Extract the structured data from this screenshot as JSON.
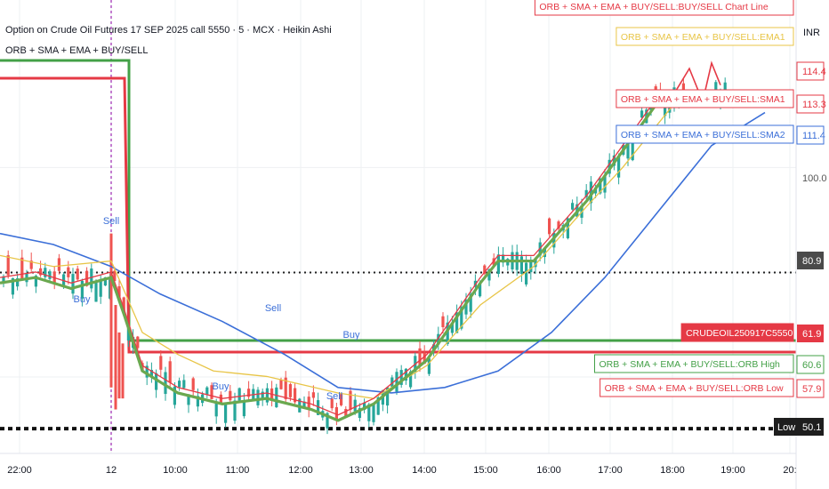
{
  "header": {
    "title": "Option on Crude Oil Futures 17 SEP 2025 call 5550 · 5 · MCX · Heikin Ashi",
    "indicator": "ORB + SMA + EMA + BUY/SELL",
    "currency": "INR"
  },
  "legend_tags": [
    {
      "text": "ORB + SMA + EMA + BUY/SELL:BUY/SELL Chart Line",
      "color": "#e53945"
    },
    {
      "text": "ORB + SMA + EMA + BUY/SELL:EMA1",
      "color": "#e8c547"
    },
    {
      "text": "ORB + SMA + EMA + BUY/SELL:SMA1",
      "color": "#e53945"
    },
    {
      "text": "ORB + SMA + EMA + BUY/SELL:SMA2",
      "color": "#3b6fd8"
    },
    {
      "text": "CRUDEOIL250917C5550",
      "color": "#e53945"
    },
    {
      "text": "ORB + SMA + EMA + BUY/SELL:ORB High",
      "color": "#43a047"
    },
    {
      "text": "ORB + SMA + EMA + BUY/SELL:ORB Low",
      "color": "#e53945"
    }
  ],
  "price_tags": [
    {
      "value": "114.4",
      "color": "#e53945",
      "filled": false
    },
    {
      "value": "113.3",
      "color": "#e53945",
      "filled": false
    },
    {
      "value": "111.4",
      "color": "#3b6fd8",
      "filled": false
    },
    {
      "value": "100.0",
      "color": "#555555",
      "filled": false
    },
    {
      "value": "80.9",
      "color": "#4a4a4a",
      "filled": true
    },
    {
      "value": "61.9",
      "color": "#e53945",
      "filled": true
    },
    {
      "value": "60.6",
      "color": "#43a047",
      "filled": false
    },
    {
      "value": "57.9",
      "color": "#e53945",
      "filled": false
    },
    {
      "value": "50.1",
      "color": "#1e1e1e",
      "filled": true
    }
  ],
  "low_badge": "Low",
  "signals": [
    {
      "text": "Sell",
      "time": "11:55",
      "price": 86,
      "type": "sell"
    },
    {
      "text": "Buy",
      "time": "11:50",
      "price": 73,
      "type": "buy"
    },
    {
      "text": "Sell",
      "time": "12:15",
      "price": 73,
      "type": "sell"
    },
    {
      "text": "Buy",
      "time": "11:10",
      "price": 54,
      "type": "buy"
    },
    {
      "text": "Sell",
      "time": "12:20",
      "price": 72,
      "type": "sell"
    },
    {
      "text": "Buy",
      "time": "12:35",
      "price": 54,
      "type": "buy"
    }
  ],
  "chart_data": {
    "type": "line",
    "title": "Option on Crude Oil Futures 17 SEP 2025 call 5550 · 5 · MCX · Heikin Ashi",
    "x_ticks": [
      "22:00",
      "12",
      "10:00",
      "11:00",
      "12:00",
      "13:00",
      "14:00",
      "15:00",
      "16:00",
      "17:00",
      "18:00",
      "19:00",
      "20:"
    ],
    "y_ticks": [
      "100.0",
      "80.9"
    ],
    "ylim": [
      48,
      124
    ],
    "orb_high": 61.9,
    "orb_low": 57.9,
    "dotted_high": 80.9,
    "dotted_low": 52.5,
    "series": [
      {
        "name": "ORB + SMA + EMA + BUY/SELL:SMA2",
        "color": "#3b6fd8",
        "x": [
          0,
          60,
          125,
          180,
          250,
          320,
          380,
          440,
          500,
          560,
          620,
          680,
          740,
          800,
          860
        ],
        "y": [
          88,
          86,
          82,
          77,
          72,
          66,
          60,
          59,
          60,
          63,
          70,
          80,
          92,
          104,
          110
        ]
      },
      {
        "name": "ORB + SMA + EMA + BUY/SELL:EMA1",
        "color": "#e8c547",
        "x": [
          0,
          60,
          125,
          160,
          200,
          240,
          300,
          380,
          420,
          480,
          540,
          600,
          660,
          700,
          740,
          760
        ],
        "y": [
          84,
          82,
          83,
          70,
          66,
          63,
          62,
          59,
          58,
          64,
          75,
          82,
          93,
          100,
          108,
          112
        ]
      },
      {
        "name": "ORB + SMA + EMA + BUY/SELL:SMA1",
        "color": "#e53945",
        "x": [
          0,
          40,
          80,
          125,
          140,
          160,
          200,
          250,
          300,
          350,
          380,
          420,
          480,
          540,
          560,
          600,
          660,
          700,
          740,
          760
        ],
        "y": [
          80,
          81,
          79,
          81,
          74,
          64,
          60,
          58,
          59,
          57,
          55,
          58,
          66,
          80,
          84,
          84,
          95,
          104,
          113,
          114
        ]
      },
      {
        "name": "Heikin Ashi (close)",
        "color": "#2e9e5b",
        "x": [
          0,
          40,
          80,
          125,
          140,
          160,
          200,
          250,
          300,
          350,
          380,
          420,
          480,
          540,
          560,
          600,
          660,
          700,
          740,
          760
        ],
        "y": [
          80,
          81,
          79,
          81,
          74,
          64,
          60,
          58,
          59,
          57,
          55,
          58,
          66,
          80,
          84,
          84,
          95,
          104,
          113,
          114
        ]
      }
    ],
    "ohlc_note": "Heikin Ashi candles, bullish green / bearish red",
    "vertical_marker_time": "12"
  }
}
